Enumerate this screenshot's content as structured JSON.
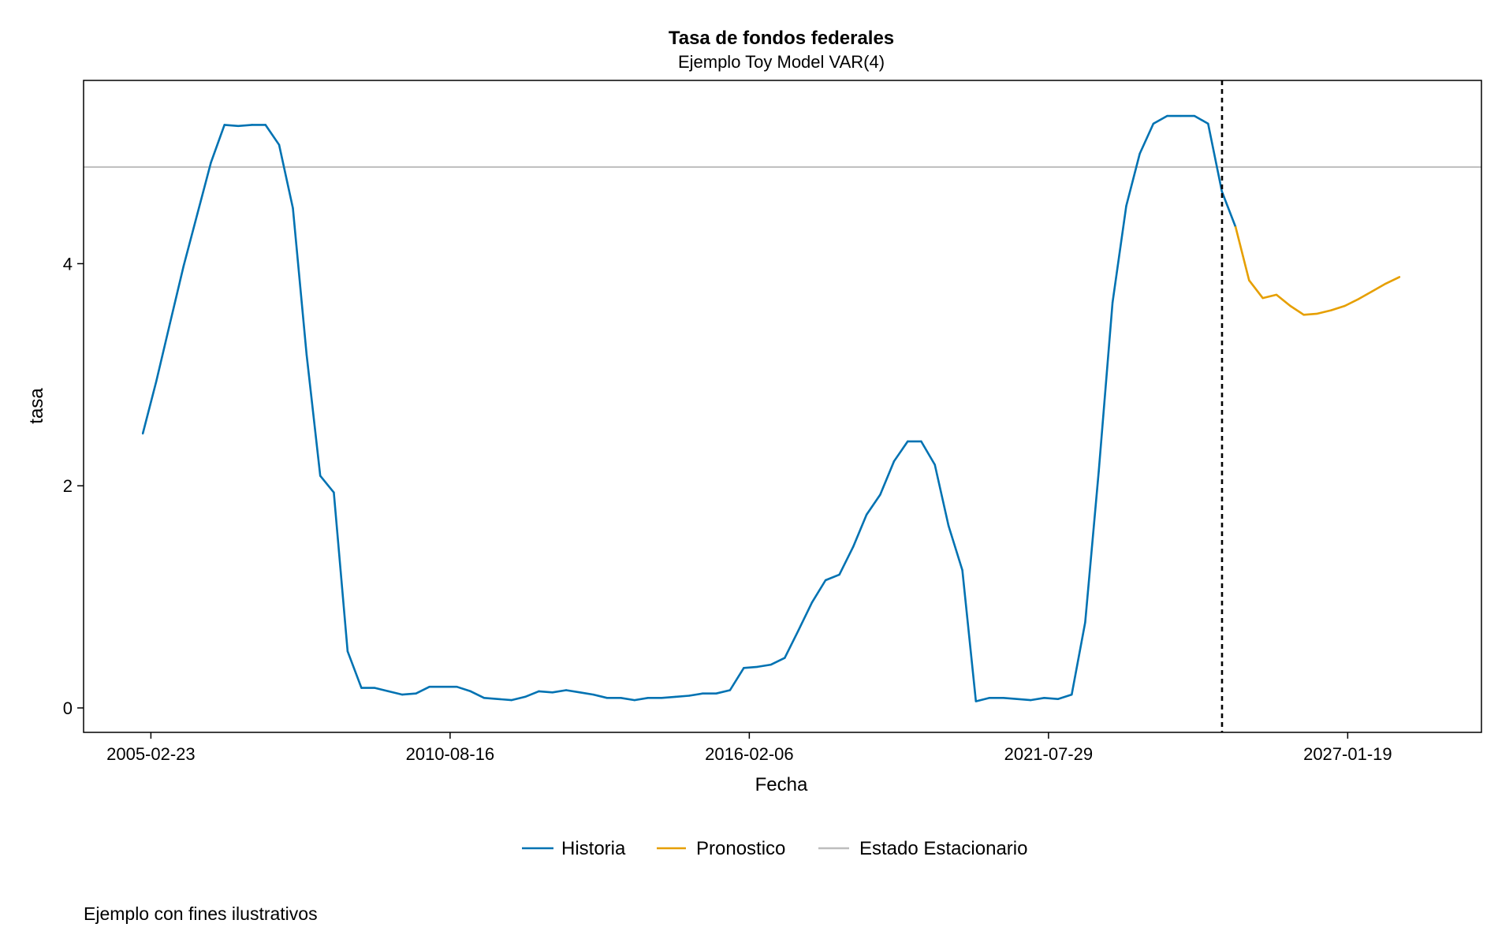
{
  "chart_data": {
    "type": "line",
    "title": "Tasa de fondos federales",
    "subtitle": "Ejemplo Toy Model VAR(4)",
    "xlabel": "Fecha",
    "ylabel": "tasa",
    "x_ticks": [
      "2005-02-23",
      "2010-08-16",
      "2016-02-06",
      "2021-07-29",
      "2027-01-19"
    ],
    "y_ticks": [
      0,
      2,
      4
    ],
    "xlim": [
      "2003-12-01",
      "2029-07-01"
    ],
    "ylim": [
      -0.22,
      5.65
    ],
    "grid": false,
    "legend_position": "bottom-center",
    "forecast_start": "2024-10-01",
    "steady_state": 4.87,
    "series": [
      {
        "name": "Historia",
        "color": "#0072B2",
        "x": [
          "2004-12-31",
          "2005-03-31",
          "2005-06-30",
          "2005-09-30",
          "2005-12-31",
          "2006-03-31",
          "2006-06-30",
          "2006-09-30",
          "2006-12-31",
          "2007-03-31",
          "2007-06-30",
          "2007-09-30",
          "2007-12-31",
          "2008-03-31",
          "2008-06-30",
          "2008-09-30",
          "2008-12-31",
          "2009-03-31",
          "2009-06-30",
          "2009-09-30",
          "2009-12-31",
          "2010-03-31",
          "2010-06-30",
          "2010-09-30",
          "2010-12-31",
          "2011-03-31",
          "2011-06-30",
          "2011-09-30",
          "2011-12-31",
          "2012-03-31",
          "2012-06-30",
          "2012-09-30",
          "2012-12-31",
          "2013-03-31",
          "2013-06-30",
          "2013-09-30",
          "2013-12-31",
          "2014-03-31",
          "2014-06-30",
          "2014-09-30",
          "2014-12-31",
          "2015-03-31",
          "2015-06-30",
          "2015-09-30",
          "2015-12-31",
          "2016-03-31",
          "2016-06-30",
          "2016-09-30",
          "2016-12-31",
          "2017-03-31",
          "2017-06-30",
          "2017-09-30",
          "2017-12-31",
          "2018-03-31",
          "2018-06-30",
          "2018-09-30",
          "2018-12-31",
          "2019-03-31",
          "2019-06-30",
          "2019-09-30",
          "2019-12-31",
          "2020-03-31",
          "2020-06-30",
          "2020-09-30",
          "2020-12-31",
          "2021-03-31",
          "2021-06-30",
          "2021-09-30",
          "2021-12-31",
          "2022-03-31",
          "2022-06-30",
          "2022-09-30",
          "2022-12-31",
          "2023-03-31",
          "2023-06-30",
          "2023-09-30",
          "2023-12-31",
          "2024-03-31",
          "2024-06-30",
          "2024-09-30",
          "2024-12-31"
        ],
        "y": [
          2.47,
          2.94,
          3.46,
          3.98,
          4.45,
          4.91,
          5.25,
          5.24,
          5.25,
          5.25,
          5.07,
          4.5,
          3.18,
          2.09,
          1.94,
          0.51,
          0.18,
          0.18,
          0.15,
          0.12,
          0.13,
          0.19,
          0.19,
          0.19,
          0.15,
          0.09,
          0.08,
          0.07,
          0.1,
          0.15,
          0.14,
          0.16,
          0.14,
          0.12,
          0.09,
          0.09,
          0.07,
          0.09,
          0.09,
          0.1,
          0.11,
          0.13,
          0.13,
          0.16,
          0.36,
          0.37,
          0.39,
          0.45,
          0.7,
          0.95,
          1.15,
          1.2,
          1.45,
          1.74,
          1.92,
          2.22,
          2.4,
          2.4,
          2.19,
          1.64,
          1.24,
          0.06,
          0.09,
          0.09,
          0.08,
          0.07,
          0.09,
          0.08,
          0.12,
          0.77,
          2.13,
          3.65,
          4.52,
          4.99,
          5.26,
          5.33,
          5.33,
          5.33,
          5.26,
          4.65,
          4.33
        ]
      },
      {
        "name": "Pronostico",
        "color": "#E69F00",
        "x": [
          "2024-12-31",
          "2025-03-31",
          "2025-06-30",
          "2025-09-30",
          "2025-12-31",
          "2026-03-31",
          "2026-06-30",
          "2026-09-30",
          "2026-12-31",
          "2027-03-31",
          "2027-06-30",
          "2027-09-30",
          "2027-12-31"
        ],
        "y": [
          4.33,
          3.85,
          3.69,
          3.72,
          3.62,
          3.54,
          3.55,
          3.58,
          3.62,
          3.68,
          3.75,
          3.82,
          3.88
        ]
      },
      {
        "name": "Estado Estacionario",
        "color": "#BDBDBD"
      }
    ]
  },
  "footnote": "Ejemplo con fines ilustrativos"
}
